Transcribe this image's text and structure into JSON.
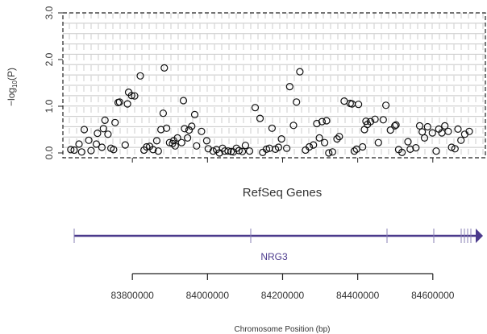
{
  "chart_data": {
    "type": "scatter",
    "title": "",
    "ylabel": "−log10(P)",
    "yticks": [
      "0.0",
      "1.0",
      "2.0",
      "3.0"
    ],
    "ylim": [
      0,
      3
    ],
    "track_label": "RefSeq Genes",
    "gene": "NRG3",
    "xlabel": "Chromosome Position (bp)",
    "xticks": [
      "83800000",
      "84000000",
      "84200000",
      "84400000",
      "84600000"
    ],
    "xtick_values": [
      83800000,
      84000000,
      84200000,
      84400000,
      84600000
    ],
    "xlim": [
      83615000,
      84740000
    ],
    "grid": true,
    "point_style": "open-circle",
    "series": [
      {
        "x": [
          83636000,
          83645000,
          83658000,
          83665000,
          83672000,
          83684000,
          83690000,
          83704000,
          83707000,
          83719000,
          83723000,
          83727000,
          83735000,
          83743000,
          83750000,
          83754000,
          83762000,
          83766000,
          83781000,
          83787000,
          83790000,
          83798000,
          83806000,
          83821000,
          83831000,
          83838000,
          83846000,
          83855000,
          83865000,
          83869000,
          83876000,
          83882000,
          83885000,
          83891000,
          83899000,
          83907000,
          83910000,
          83914000,
          83920000,
          83931000,
          83936000,
          83939000,
          83947000,
          83951000,
          83958000,
          83966000,
          83971000,
          83984000,
          83998000,
          84002000,
          84015000,
          84024000,
          84032000,
          84040000,
          84046000,
          84055000,
          84063000,
          84069000,
          84077000,
          84084000,
          84093000,
          84101000,
          84112000,
          84127000,
          84140000,
          84147000,
          84157000,
          84165000,
          84172000,
          84181000,
          84189000,
          84197000,
          84211000,
          84219000,
          84229000,
          84237000,
          84246000,
          84261000,
          84271000,
          84282000,
          84291000,
          84298000,
          84305000,
          84312000,
          84317000,
          84323000,
          84333000,
          84345000,
          84351000,
          84364000,
          84380000,
          84385000,
          84391000,
          84397000,
          84402000,
          84413000,
          84418000,
          84422000,
          84426000,
          84434000,
          84446000,
          84455000,
          84468000,
          84475000,
          84487000,
          84499000,
          84502000,
          84509000,
          84518000,
          84534000,
          84540000,
          84555000,
          84565000,
          84572000,
          84578000,
          84586000,
          84599000,
          84609000,
          84616000,
          84624000,
          84632000,
          84641000,
          84650000,
          84659000,
          84667000,
          84675000,
          84685000,
          84697000
        ],
        "y": [
          0.07,
          0.06,
          0.19,
          0.02,
          0.5,
          0.27,
          0.05,
          0.19,
          0.42,
          0.12,
          0.52,
          0.7,
          0.4,
          0.1,
          0.07,
          0.65,
          1.08,
          1.09,
          0.17,
          1.05,
          1.3,
          1.23,
          1.22,
          1.65,
          0.06,
          0.13,
          0.14,
          0.07,
          0.26,
          0.04,
          0.5,
          0.85,
          1.82,
          0.53,
          0.22,
          0.2,
          0.26,
          0.15,
          0.32,
          0.22,
          1.12,
          0.52,
          0.32,
          0.49,
          0.57,
          0.82,
          0.15,
          0.46,
          0.26,
          0.09,
          0.04,
          0.07,
          0.0,
          0.1,
          0.04,
          0.04,
          0.03,
          0.02,
          0.1,
          0.05,
          0.03,
          0.16,
          0.04,
          0.97,
          0.74,
          0.01,
          0.08,
          0.1,
          0.53,
          0.08,
          0.12,
          0.3,
          0.1,
          1.42,
          0.59,
          1.09,
          1.74,
          0.06,
          0.13,
          0.17,
          0.63,
          0.32,
          0.67,
          0.22,
          0.69,
          0.0,
          0.02,
          0.3,
          0.35,
          1.11,
          1.06,
          1.05,
          0.04,
          0.08,
          1.04,
          0.13,
          0.5,
          0.68,
          0.61,
          0.67,
          0.72,
          0.22,
          0.71,
          1.02,
          0.49,
          0.58,
          0.6,
          0.07,
          0.01,
          0.24,
          0.08,
          0.11,
          0.58,
          0.45,
          0.32,
          0.56,
          0.43,
          0.04,
          0.51,
          0.43,
          0.58,
          0.46,
          0.12,
          0.09,
          0.51,
          0.27,
          0.4,
          0.46
        ]
      }
    ]
  }
}
